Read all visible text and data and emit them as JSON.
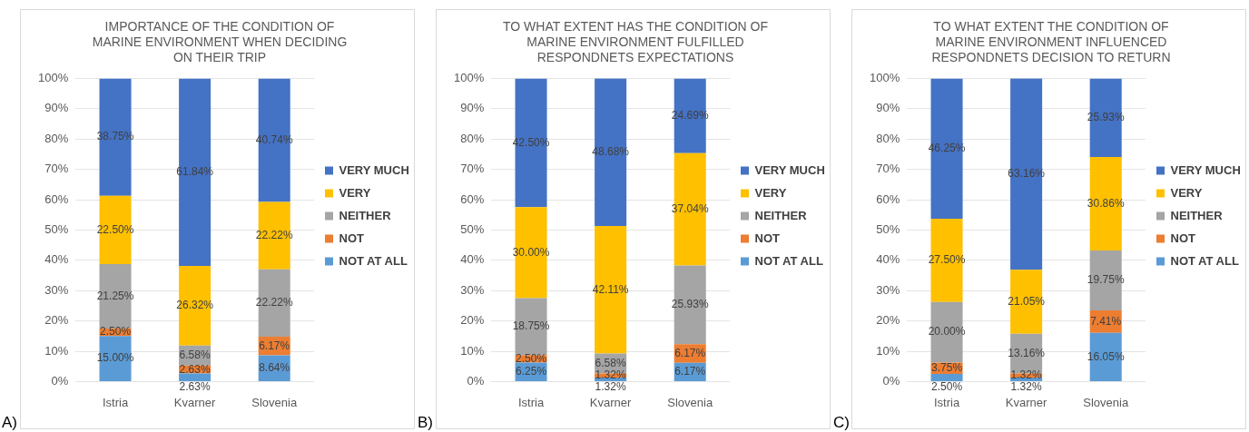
{
  "chart_data": [
    {
      "type": "bar",
      "stacked": true,
      "title": "IMPORTANCE OF THE CONDITION OF MARINE ENVIRONMENT WHEN DECIDING ON THEIR TRIP",
      "categories": [
        "Istria",
        "Kvarner",
        "Slovenia"
      ],
      "ylim": [
        0,
        100
      ],
      "yticks": [
        {
          "value": 0,
          "label": "0%"
        },
        {
          "value": 10,
          "label": "10%"
        },
        {
          "value": 20,
          "label": "20%"
        },
        {
          "value": 30,
          "label": "30%"
        },
        {
          "value": 40,
          "label": "40%"
        },
        {
          "value": 50,
          "label": "50%"
        },
        {
          "value": 60,
          "label": "60%"
        },
        {
          "value": 70,
          "label": "70%"
        },
        {
          "value": 80,
          "label": "80%"
        },
        {
          "value": 90,
          "label": "90%"
        },
        {
          "value": 100,
          "label": "100%"
        }
      ],
      "grid": "y",
      "legend": "right",
      "annotations": [
        "A)"
      ],
      "series": [
        {
          "name": "NOT AT ALL",
          "color": "#5b9bd5",
          "values": [
            15.0,
            2.63,
            8.64
          ],
          "value_labels": [
            "15.00%",
            "2.63%",
            "8.64%"
          ]
        },
        {
          "name": "NOT",
          "color": "#ed7d31",
          "values": [
            2.5,
            2.63,
            6.17
          ],
          "value_labels": [
            "2.50%",
            "2.63%",
            "6.17%"
          ]
        },
        {
          "name": "NEITHER",
          "color": "#a5a5a5",
          "values": [
            21.25,
            6.58,
            22.22
          ],
          "value_labels": [
            "21.25%",
            "6.58%",
            "22.22%"
          ]
        },
        {
          "name": "VERY",
          "color": "#ffc000",
          "values": [
            22.5,
            26.32,
            22.22
          ],
          "value_labels": [
            "22.50%",
            "26.32%",
            "22.22%"
          ]
        },
        {
          "name": "VERY MUCH",
          "color": "#4472c4",
          "values": [
            38.75,
            61.84,
            40.74
          ],
          "value_labels": [
            "38.75%",
            "61.84%",
            "40.74%"
          ]
        }
      ]
    },
    {
      "type": "bar",
      "stacked": true,
      "title": "TO WHAT EXTENT HAS THE CONDITION OF MARINE ENVIRONMENT FULFILLED RESPONDNETS EXPECTATIONS",
      "categories": [
        "Istria",
        "Kvarner",
        "Slovenia"
      ],
      "ylim": [
        0,
        100
      ],
      "yticks": [
        {
          "value": 0,
          "label": "0%"
        },
        {
          "value": 10,
          "label": "10%"
        },
        {
          "value": 20,
          "label": "20%"
        },
        {
          "value": 30,
          "label": "30%"
        },
        {
          "value": 40,
          "label": "40%"
        },
        {
          "value": 50,
          "label": "50%"
        },
        {
          "value": 60,
          "label": "60%"
        },
        {
          "value": 70,
          "label": "70%"
        },
        {
          "value": 80,
          "label": "80%"
        },
        {
          "value": 90,
          "label": "90%"
        },
        {
          "value": 100,
          "label": "100%"
        }
      ],
      "grid": "y",
      "legend": "right",
      "annotations": [
        "B)"
      ],
      "series": [
        {
          "name": "NOT AT ALL",
          "color": "#5b9bd5",
          "values": [
            6.25,
            1.32,
            6.17
          ],
          "value_labels": [
            "6.25%",
            "1.32%",
            "6.17%"
          ]
        },
        {
          "name": "NOT",
          "color": "#ed7d31",
          "values": [
            2.5,
            1.32,
            6.17
          ],
          "value_labels": [
            "2.50%",
            "1.32%",
            "6.17%"
          ]
        },
        {
          "name": "NEITHER",
          "color": "#a5a5a5",
          "values": [
            18.75,
            6.58,
            25.93
          ],
          "value_labels": [
            "18.75%",
            "6.58%",
            "25.93%"
          ]
        },
        {
          "name": "VERY",
          "color": "#ffc000",
          "values": [
            30.0,
            42.11,
            37.04
          ],
          "value_labels": [
            "30.00%",
            "42.11%",
            "37.04%"
          ]
        },
        {
          "name": "VERY MUCH",
          "color": "#4472c4",
          "values": [
            42.5,
            48.68,
            24.69
          ],
          "value_labels": [
            "42.50%",
            "48.68%",
            "24.69%"
          ]
        }
      ]
    },
    {
      "type": "bar",
      "stacked": true,
      "title": "TO WHAT EXTENT THE CONDITION OF MARINE ENVIRONMENT INFLUENCED RESPONDNETS DECISION TO RETURN",
      "categories": [
        "Istria",
        "Kvarner",
        "Slovenia"
      ],
      "ylim": [
        0,
        100
      ],
      "yticks": [
        {
          "value": 0,
          "label": "0%"
        },
        {
          "value": 10,
          "label": "10%"
        },
        {
          "value": 20,
          "label": "20%"
        },
        {
          "value": 30,
          "label": "30%"
        },
        {
          "value": 40,
          "label": "40%"
        },
        {
          "value": 50,
          "label": "50%"
        },
        {
          "value": 60,
          "label": "60%"
        },
        {
          "value": 70,
          "label": "70%"
        },
        {
          "value": 80,
          "label": "80%"
        },
        {
          "value": 90,
          "label": "90%"
        },
        {
          "value": 100,
          "label": "100%"
        }
      ],
      "grid": "y",
      "legend": "right",
      "annotations": [
        "C)"
      ],
      "series": [
        {
          "name": "NOT AT ALL",
          "color": "#5b9bd5",
          "values": [
            2.5,
            1.32,
            16.05
          ],
          "value_labels": [
            "2.50%",
            "1.32%",
            "16.05%"
          ]
        },
        {
          "name": "NOT",
          "color": "#ed7d31",
          "values": [
            3.75,
            1.32,
            7.41
          ],
          "value_labels": [
            "3.75%",
            "1.32%",
            "7.41%"
          ]
        },
        {
          "name": "NEITHER",
          "color": "#a5a5a5",
          "values": [
            20.0,
            13.16,
            19.75
          ],
          "value_labels": [
            "20.00%",
            "13.16%",
            "19.75%"
          ]
        },
        {
          "name": "VERY",
          "color": "#ffc000",
          "values": [
            27.5,
            21.05,
            30.86
          ],
          "value_labels": [
            "27.50%",
            "21.05%",
            "30.86%"
          ]
        },
        {
          "name": "VERY MUCH",
          "color": "#4472c4",
          "values": [
            46.25,
            63.16,
            25.93
          ],
          "value_labels": [
            "46.25%",
            "63.16%",
            "25.93%"
          ]
        }
      ]
    }
  ]
}
